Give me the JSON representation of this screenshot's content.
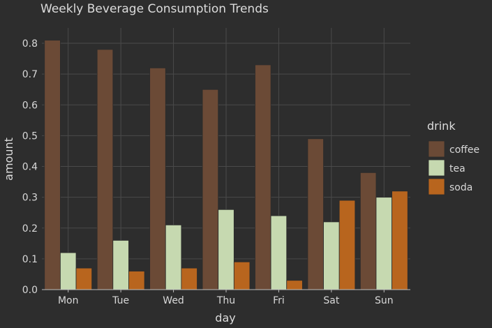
{
  "chart_data": {
    "type": "bar",
    "title": "Weekly Beverage Consumption Trends",
    "xlabel": "day",
    "ylabel": "amount",
    "categories": [
      "Mon",
      "Tue",
      "Wed",
      "Thu",
      "Fri",
      "Sat",
      "Sun"
    ],
    "yticks": [
      "0.0",
      "0.1",
      "0.2",
      "0.3",
      "0.4",
      "0.5",
      "0.6",
      "0.7",
      "0.8"
    ],
    "ylim": [
      0,
      0.85
    ],
    "grid": true,
    "legend": {
      "title": "drink",
      "placement": "right"
    },
    "series": [
      {
        "name": "coffee",
        "color": "#6b4a36",
        "values": [
          0.81,
          0.78,
          0.72,
          0.65,
          0.73,
          0.49,
          0.38
        ]
      },
      {
        "name": "tea",
        "color": "#c6d9b0",
        "values": [
          0.12,
          0.16,
          0.21,
          0.26,
          0.24,
          0.22,
          0.3
        ]
      },
      {
        "name": "soda",
        "color": "#b8651e",
        "values": [
          0.07,
          0.06,
          0.07,
          0.09,
          0.03,
          0.29,
          0.32
        ]
      }
    ]
  }
}
